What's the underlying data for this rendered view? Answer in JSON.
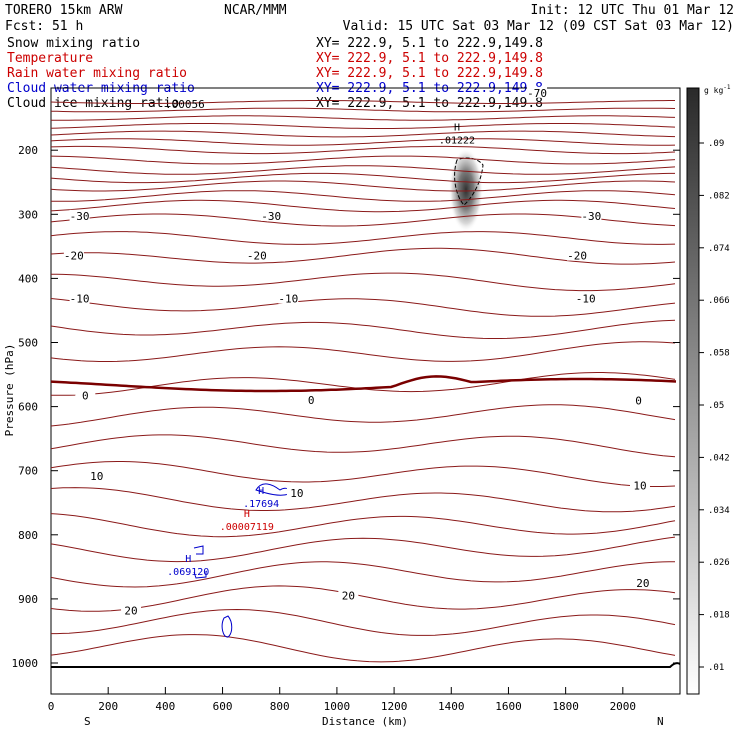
{
  "header": {
    "model": "TORERO  15km ARW",
    "center": "NCAR/MMM",
    "init": "Init: 12 UTC Thu 01 Mar 12",
    "fcst": "Fcst:   51 h",
    "valid": "Valid: 15 UTC Sat 03 Mar 12 (09 CST Sat 03 Mar 12)"
  },
  "fields": [
    {
      "name": "Snow mixing ratio",
      "xy": "XY= 222.9,  5.1 to 222.9,149.8",
      "color": "#000000"
    },
    {
      "name": "Temperature",
      "xy": "XY= 222.9,  5.1 to 222.9,149.8",
      "color": "#cc0000"
    },
    {
      "name": "Rain water mixing ratio",
      "xy": "XY= 222.9,  5.1 to 222.9,149.8",
      "color": "#cc0000"
    },
    {
      "name": "Cloud water mixing ratio",
      "xy": "XY= 222.9,  5.1 to 222.9,149.8",
      "color": "#0000cc"
    },
    {
      "name": "Cloud ice mixing ratio",
      "xy": "XY= 222.9,  5.1 to 222.9,149.8",
      "color": "#000000"
    }
  ],
  "colors": {
    "isotherm": "#8b1a1a",
    "zero_isotherm": "#7a0000",
    "cloud_water": "#0000cc",
    "rain": "#cc0000",
    "ground": "#000000"
  },
  "chart_data": {
    "type": "cross-section",
    "xlabel": "Distance (km)",
    "ylabel": "Pressure (hPa)",
    "x_range": [
      0,
      2200
    ],
    "y_range": [
      1050,
      100
    ],
    "x_ticks": [
      0,
      200,
      400,
      600,
      800,
      1000,
      1200,
      1400,
      1600,
      1800,
      2000
    ],
    "y_ticks": [
      200,
      300,
      400,
      500,
      600,
      700,
      800,
      900,
      1000
    ],
    "x_end_labels": {
      "left": "S",
      "right": "N"
    },
    "colorbar": {
      "unit": "g kg",
      "unit_exp": "-1",
      "ticks": [
        ".09",
        ".082",
        ".074",
        ".066",
        ".058",
        ".05",
        ".042",
        ".034",
        ".026",
        ".018",
        ".01"
      ]
    },
    "isotherm_labels": [
      {
        "text": "-70",
        "x": 1700,
        "p": 112
      },
      {
        "text": "-30",
        "x": 100,
        "p": 304
      },
      {
        "text": "-30",
        "x": 770,
        "p": 304
      },
      {
        "text": "-30",
        "x": 1890,
        "p": 304
      },
      {
        "text": "-20",
        "x": 80,
        "p": 366
      },
      {
        "text": "-20",
        "x": 720,
        "p": 366
      },
      {
        "text": "-20",
        "x": 1840,
        "p": 366
      },
      {
        "text": "-10",
        "x": 100,
        "p": 433
      },
      {
        "text": "-10",
        "x": 830,
        "p": 433
      },
      {
        "text": "-10",
        "x": 1870,
        "p": 433
      },
      {
        "text": "0",
        "x": 120,
        "p": 584
      },
      {
        "text": "0",
        "x": 910,
        "p": 591
      },
      {
        "text": "0",
        "x": 2055,
        "p": 592
      },
      {
        "text": "10",
        "x": 160,
        "p": 710
      },
      {
        "text": "10",
        "x": 860,
        "p": 736
      },
      {
        "text": "10",
        "x": 2060,
        "p": 725
      },
      {
        "text": "20",
        "x": 280,
        "p": 920
      },
      {
        "text": "20",
        "x": 1040,
        "p": 896
      },
      {
        "text": "20",
        "x": 2070,
        "p": 877
      }
    ],
    "maxima": [
      {
        "marker": "H",
        "value": ".01222",
        "x": 1420,
        "p": 185,
        "field": "Cloud ice mixing ratio"
      },
      {
        "marker": "H",
        "value": ".17694",
        "x": 735,
        "p": 752,
        "field": "Cloud water mixing ratio"
      },
      {
        "marker": "H",
        "value": ".00007119",
        "x": 685,
        "p": 788,
        "field": "Rain water mixing ratio"
      },
      {
        "marker": "H",
        "value": ".069120",
        "x": 480,
        "p": 858,
        "field": "Cloud water mixing ratio"
      }
    ],
    "cloud_ice_max_gkg": 0.09
  },
  "partial_label": "H\n.00056"
}
